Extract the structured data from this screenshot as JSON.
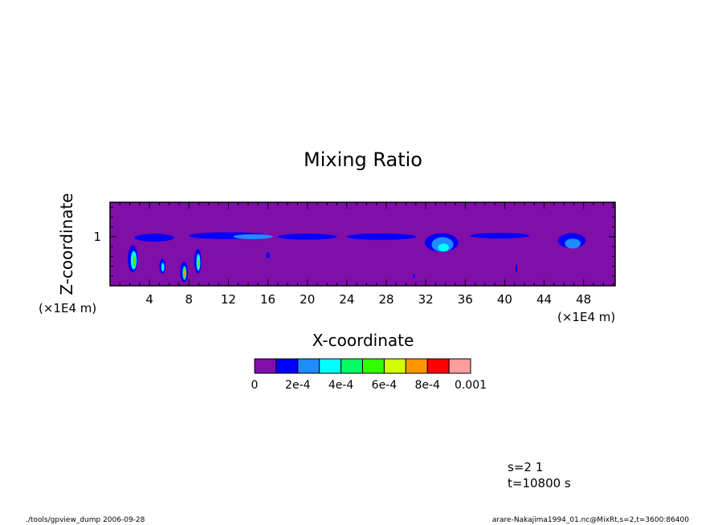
{
  "chart_data": {
    "type": "heatmap",
    "title": "Mixing Ratio",
    "xlabel": "X-coordinate",
    "ylabel": "Z-coordinate",
    "x_unit": "(×1E4 m)",
    "y_unit": "(×1E4 m)",
    "x_ticks": [
      4,
      8,
      12,
      16,
      20,
      24,
      28,
      32,
      36,
      40,
      44,
      48
    ],
    "y_ticks": [
      1
    ],
    "xlim": [
      0,
      51.2
    ],
    "ylim": [
      0,
      1.7
    ],
    "colorbar": {
      "levels": [
        0,
        0.0001,
        0.0002,
        0.0003,
        0.0004,
        0.0005,
        0.0006,
        0.0007,
        0.0008,
        0.0009,
        0.001
      ],
      "colors": [
        "#7f0fa8",
        "#0000ff",
        "#1e8cff",
        "#00ffff",
        "#00ff64",
        "#32ff00",
        "#d2ff00",
        "#ff9600",
        "#ff0000",
        "#ff9c9c"
      ],
      "labels": [
        "0",
        "2e-4",
        "4e-4",
        "6e-4",
        "8e-4",
        "0.001"
      ]
    },
    "features": [
      {
        "x": 4.5,
        "z": 0.98,
        "w": 4.0,
        "h": 0.16,
        "level": 1
      },
      {
        "x": 12.0,
        "z": 1.02,
        "w": 8.0,
        "h": 0.14,
        "level": 1
      },
      {
        "x": 14.5,
        "z": 1.0,
        "w": 4.0,
        "h": 0.1,
        "level": 2
      },
      {
        "x": 20.0,
        "z": 1.0,
        "w": 6.0,
        "h": 0.12,
        "level": 1
      },
      {
        "x": 27.5,
        "z": 1.0,
        "w": 7.0,
        "h": 0.13,
        "level": 1
      },
      {
        "x": 33.6,
        "z": 0.88,
        "w": 3.4,
        "h": 0.38,
        "level": 1
      },
      {
        "x": 33.7,
        "z": 0.84,
        "w": 2.2,
        "h": 0.3,
        "level": 2
      },
      {
        "x": 33.8,
        "z": 0.78,
        "w": 1.1,
        "h": 0.16,
        "level": 3
      },
      {
        "x": 39.5,
        "z": 1.02,
        "w": 6.0,
        "h": 0.11,
        "level": 1
      },
      {
        "x": 46.8,
        "z": 0.92,
        "w": 2.8,
        "h": 0.3,
        "level": 1
      },
      {
        "x": 46.9,
        "z": 0.86,
        "w": 1.6,
        "h": 0.2,
        "level": 2
      },
      {
        "x": 2.3,
        "z": 0.55,
        "w": 1.0,
        "h": 0.55,
        "level": 1
      },
      {
        "x": 2.4,
        "z": 0.52,
        "w": 0.6,
        "h": 0.38,
        "level": 3
      },
      {
        "x": 2.45,
        "z": 0.5,
        "w": 0.3,
        "h": 0.22,
        "level": 5
      },
      {
        "x": 5.3,
        "z": 0.4,
        "w": 0.6,
        "h": 0.3,
        "level": 1
      },
      {
        "x": 5.35,
        "z": 0.38,
        "w": 0.3,
        "h": 0.18,
        "level": 3
      },
      {
        "x": 7.5,
        "z": 0.28,
        "w": 0.8,
        "h": 0.42,
        "level": 1
      },
      {
        "x": 7.55,
        "z": 0.26,
        "w": 0.4,
        "h": 0.28,
        "level": 4
      },
      {
        "x": 7.6,
        "z": 0.25,
        "w": 0.2,
        "h": 0.16,
        "level": 7
      },
      {
        "x": 8.9,
        "z": 0.5,
        "w": 0.7,
        "h": 0.5,
        "level": 1
      },
      {
        "x": 8.95,
        "z": 0.48,
        "w": 0.4,
        "h": 0.34,
        "level": 3
      },
      {
        "x": 9.0,
        "z": 0.47,
        "w": 0.2,
        "h": 0.18,
        "level": 5
      },
      {
        "x": 16.0,
        "z": 0.62,
        "w": 0.4,
        "h": 0.12,
        "level": 1
      },
      {
        "x": 30.8,
        "z": 0.2,
        "w": 0.2,
        "h": 0.08,
        "level": 1
      },
      {
        "x": 41.2,
        "z": 0.35,
        "w": 0.2,
        "h": 0.15,
        "level": 1
      }
    ]
  },
  "annotations": {
    "info_line1": "s=2 1",
    "info_line2": "t=10800 s",
    "footer_left": "./tools/gpview_dump  2006-09-28",
    "footer_right": "arare-Nakajima1994_01.nc@MixRt,s=2,t=3600:86400"
  }
}
